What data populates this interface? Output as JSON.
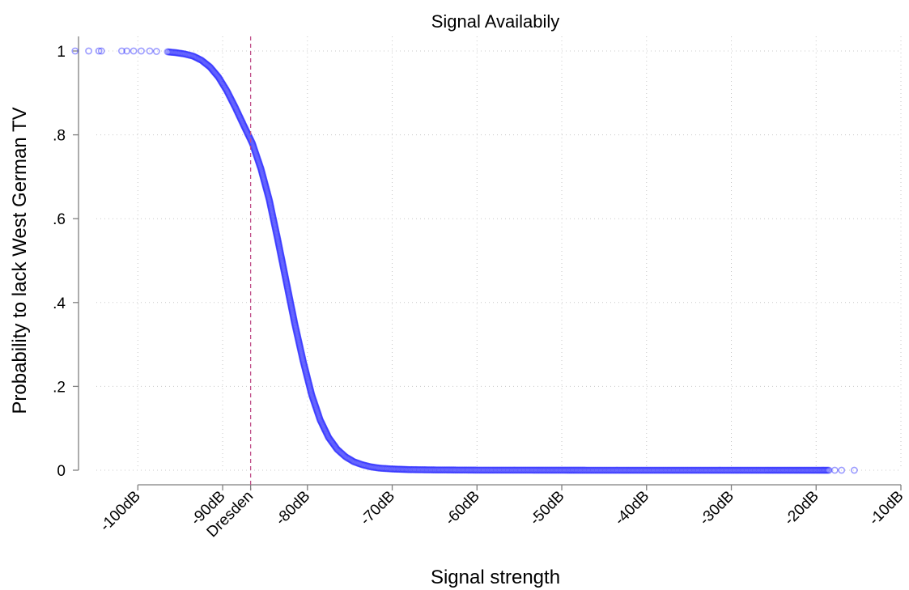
{
  "chart_data": {
    "type": "scatter",
    "title": "Signal Availabily",
    "xlabel": "Signal strength",
    "ylabel": "Probability to lack West German TV",
    "xlim": [
      -107,
      -10
    ],
    "ylim": [
      0,
      1
    ],
    "grid": true,
    "x_ticks": [
      {
        "value": -100,
        "label": "-100dB"
      },
      {
        "value": -90,
        "label": "-90dB"
      },
      {
        "value": -80,
        "label": "-80dB"
      },
      {
        "value": -70,
        "label": "-70dB"
      },
      {
        "value": -60,
        "label": "-60dB"
      },
      {
        "value": -50,
        "label": "-50dB"
      },
      {
        "value": -40,
        "label": "-40dB"
      },
      {
        "value": -30,
        "label": "-30dB"
      },
      {
        "value": -20,
        "label": "-20dB"
      },
      {
        "value": -10,
        "label": "-10dB"
      }
    ],
    "y_ticks": [
      {
        "value": 0,
        "label": "0"
      },
      {
        "value": 0.2,
        "label": ".2"
      },
      {
        "value": 0.4,
        "label": ".4"
      },
      {
        "value": 0.6,
        "label": ".6"
      },
      {
        "value": 0.8,
        "label": ".8"
      },
      {
        "value": 1,
        "label": "1"
      }
    ],
    "reference_line": {
      "x": -86.7,
      "label": "Dresden",
      "color": "#c0508a"
    },
    "series": [
      {
        "color": "#2323ff",
        "points": [
          [
            -107.4,
            1.0
          ],
          [
            -105.8,
            1.0
          ],
          [
            -104.6,
            1.0
          ],
          [
            -104.3,
            1.0
          ],
          [
            -101.9,
            1.0
          ],
          [
            -101.3,
            1.0
          ],
          [
            -100.5,
            1.0
          ],
          [
            -99.6,
            1.0
          ],
          [
            -98.6,
            1.0
          ],
          [
            -97.8,
            0.999
          ],
          [
            -96.5,
            0.998
          ],
          [
            -95.5,
            0.996
          ],
          [
            -94.5,
            0.993
          ],
          [
            -93.5,
            0.988
          ],
          [
            -92.5,
            0.978
          ],
          [
            -91.5,
            0.962
          ],
          [
            -90.5,
            0.938
          ],
          [
            -89.5,
            0.905
          ],
          [
            -88.5,
            0.865
          ],
          [
            -87.5,
            0.822
          ],
          [
            -86.5,
            0.78
          ],
          [
            -85.5,
            0.72
          ],
          [
            -84.5,
            0.645
          ],
          [
            -83.5,
            0.55
          ],
          [
            -82.5,
            0.45
          ],
          [
            -81.5,
            0.35
          ],
          [
            -80.5,
            0.26
          ],
          [
            -79.5,
            0.18
          ],
          [
            -78.5,
            0.12
          ],
          [
            -77.5,
            0.078
          ],
          [
            -76.5,
            0.05
          ],
          [
            -75.5,
            0.032
          ],
          [
            -74.5,
            0.02
          ],
          [
            -73.5,
            0.013
          ],
          [
            -72.5,
            0.008
          ],
          [
            -71.5,
            0.005
          ],
          [
            -70.0,
            0.003
          ],
          [
            -68.0,
            0.0015
          ],
          [
            -65.0,
            0.0008
          ],
          [
            -60.0,
            0.0003
          ],
          [
            -50.0,
            0.0001
          ],
          [
            -40.0,
            0.0
          ],
          [
            -30.0,
            0.0
          ],
          [
            -26.0,
            0.0
          ],
          [
            -24.0,
            0.0
          ],
          [
            -22.0,
            0.0
          ],
          [
            -20.0,
            0.0
          ],
          [
            -19.3,
            0.0
          ],
          [
            -18.5,
            0.0
          ],
          [
            -17.8,
            0.0
          ],
          [
            -17.0,
            0.0
          ],
          [
            -15.5,
            0.0
          ]
        ]
      }
    ]
  }
}
